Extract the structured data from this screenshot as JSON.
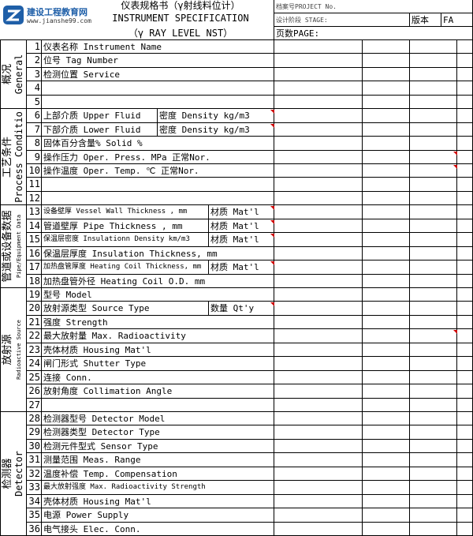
{
  "header": {
    "logo": {
      "name": "建设工程教育网",
      "url": "www.jianshe99.com"
    },
    "title_cn": "仪表规格书（γ射线料位计）",
    "title_en": "INSTRUMENT SPECIFICATION",
    "title_sub": "（γ RAY LEVEL NST）",
    "project_no": "档案号PROJECT No.",
    "stage": "设计阶段 STAGE:",
    "revision_label": "版本",
    "revision": "FA",
    "page": "页数PAGE:"
  },
  "groups": [
    {
      "cn": "概况",
      "en": "General",
      "rows": [
        {
          "no": "1",
          "label": "仪表名称  Instrument Name"
        },
        {
          "no": "2",
          "label": "位号 Tag Number"
        },
        {
          "no": "3",
          "label": "检测位置 Service"
        },
        {
          "no": "4"
        },
        {
          "no": "5"
        }
      ]
    },
    {
      "cn": "工艺条件",
      "en": "Process Conditio",
      "rows": [
        {
          "no": "6",
          "label": "上部介质 Upper Fluid",
          "label2": "密度 Density   kg/m3"
        },
        {
          "no": "7",
          "label": "下部介质 Lower Fluid",
          "label2": "密度 Density kg/m3"
        },
        {
          "no": "8",
          "label": "固体百分含量% Solid %"
        },
        {
          "no": "9",
          "label": "操作压力 Oper. Press.  MPa 正常Nor."
        },
        {
          "no": "10",
          "label": "操作温度 Oper. Temp.  ℃ 正常Nor."
        },
        {
          "no": "11"
        },
        {
          "no": "12"
        }
      ]
    },
    {
      "cn": "管道或设备数据",
      "en": "Pipe/Equipment Data",
      "rows": [
        {
          "no": "13",
          "label": "设备壁厚 Vessel Wall Thickness , mm",
          "label2": "材质 Mat'l"
        },
        {
          "no": "14",
          "label": "管道壁厚 Pipe Thickness , mm",
          "label2": "材质 Mat'l"
        },
        {
          "no": "15",
          "label": "保温层密度 Insulationn Density  km/m3",
          "label2": "材质 Mat'l"
        },
        {
          "no": "16",
          "label": "保温层厚度 Insulation Thickness, mm"
        },
        {
          "no": "17",
          "label": "加热盘管厚度 Heating Coil Thickness, mm",
          "label2": "材质 Mat'l"
        },
        {
          "no": "18",
          "label": "加热盘管外径 Heating Coil O.D. mm"
        }
      ]
    },
    {
      "cn": "放射源",
      "en": "Radioactive Source",
      "rows": [
        {
          "no": "19",
          "label": "型号 Model"
        },
        {
          "no": "20",
          "label": "放射源类型 Source Type",
          "label2": "数量 Qt'y"
        },
        {
          "no": "21",
          "label": "强度 Strength"
        },
        {
          "no": "22",
          "label": "最大放射量 Max. Radioactivity"
        },
        {
          "no": "23",
          "label": "壳体材质 Housing Mat'l"
        },
        {
          "no": "24",
          "label": "闸门形式 Shutter Type"
        },
        {
          "no": "25",
          "label": "连接 Conn."
        },
        {
          "no": "26",
          "label": "放射角度 Collimation Angle"
        },
        {
          "no": "27"
        }
      ]
    },
    {
      "cn": "检测器",
      "en": "Detector",
      "rows": [
        {
          "no": "28",
          "label": "检测器型号 Detector Model"
        },
        {
          "no": "29",
          "label": "检测器类型 Detector Type"
        },
        {
          "no": "30",
          "label": "检测元件型式 Sensor Type"
        },
        {
          "no": "31",
          "label": "测量范围  Meas. Range"
        },
        {
          "no": "32",
          "label": "温度补偿 Temp. Compensation"
        },
        {
          "no": "33",
          "label": "最大放射强度 Max. Radioactivity Strength"
        },
        {
          "no": "34",
          "label": "壳体材质 Housing Mat'l"
        },
        {
          "no": "35",
          "label": "电源 Power Supply"
        },
        {
          "no": "36",
          "label": "电气接头 Elec. Conn."
        }
      ]
    }
  ]
}
